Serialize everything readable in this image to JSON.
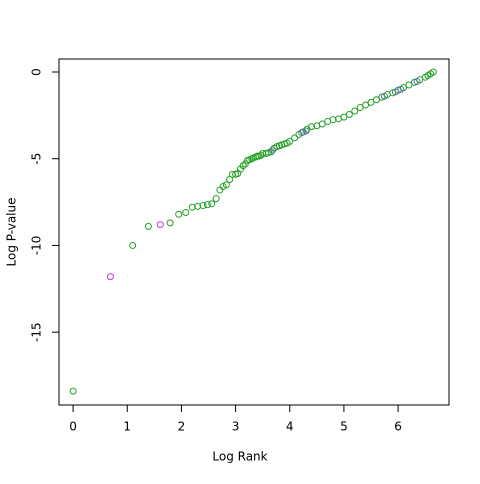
{
  "chart_data": {
    "type": "scatter",
    "xlabel": "Log Rank",
    "ylabel": "Log P-value",
    "xlim": [
      -0.26,
      6.94
    ],
    "ylim": [
      -19.2,
      0.75
    ],
    "xticks": [
      0,
      1,
      2,
      3,
      4,
      5,
      6
    ],
    "yticks": [
      0,
      -5,
      -10,
      -15
    ],
    "series": [
      {
        "color": "#22a022",
        "x": [
          0,
          1.1,
          1.39,
          1.79,
          1.95,
          2.08,
          2.2,
          2.3,
          2.4,
          2.48,
          2.56,
          2.64,
          2.71,
          2.77,
          2.83,
          2.89,
          2.94,
          3.0,
          3.04,
          3.09,
          3.14,
          3.18,
          3.22,
          3.26,
          3.3,
          3.33,
          3.37,
          3.4,
          3.43,
          3.47,
          3.5,
          3.56,
          3.61,
          3.66,
          3.71,
          3.76,
          3.81,
          3.85,
          3.9,
          3.95,
          4.0,
          4.09,
          4.17,
          4.25,
          4.32,
          4.4,
          4.5,
          4.6,
          4.7,
          4.8,
          4.9,
          5.0,
          5.1,
          5.2,
          5.3,
          5.4,
          5.5,
          5.6,
          5.7,
          5.8,
          5.9,
          6.0,
          6.1,
          6.2,
          6.3,
          6.4,
          6.5,
          6.55,
          6.6,
          6.65
        ],
        "values": [
          -18.4,
          -10.0,
          -8.9,
          -8.7,
          -8.2,
          -8.1,
          -7.8,
          -7.75,
          -7.7,
          -7.65,
          -7.6,
          -7.3,
          -6.8,
          -6.6,
          -6.5,
          -6.2,
          -5.9,
          -5.9,
          -5.85,
          -5.6,
          -5.4,
          -5.3,
          -5.1,
          -5.05,
          -5.0,
          -4.95,
          -4.9,
          -4.85,
          -4.85,
          -4.8,
          -4.7,
          -4.7,
          -4.65,
          -4.6,
          -4.4,
          -4.3,
          -4.25,
          -4.2,
          -4.15,
          -4.1,
          -4.0,
          -3.8,
          -3.6,
          -3.45,
          -3.3,
          -3.15,
          -3.1,
          -3.0,
          -2.85,
          -2.75,
          -2.7,
          -2.6,
          -2.45,
          -2.25,
          -2.05,
          -1.9,
          -1.75,
          -1.6,
          -1.45,
          -1.3,
          -1.2,
          -1.05,
          -0.9,
          -0.75,
          -0.6,
          -0.45,
          -0.3,
          -0.2,
          -0.1,
          0.0
        ]
      },
      {
        "color": "#cc33ee",
        "x": [
          0.69,
          1.61
        ],
        "values": [
          -11.8,
          -8.8
        ]
      },
      {
        "color": "#5f6fb0",
        "x": [
          3.68,
          4.22,
          4.3,
          5.75,
          5.95,
          6.05,
          6.35
        ],
        "values": [
          -4.5,
          -3.5,
          -3.4,
          -1.4,
          -1.15,
          -1.0,
          -0.55
        ]
      }
    ]
  }
}
